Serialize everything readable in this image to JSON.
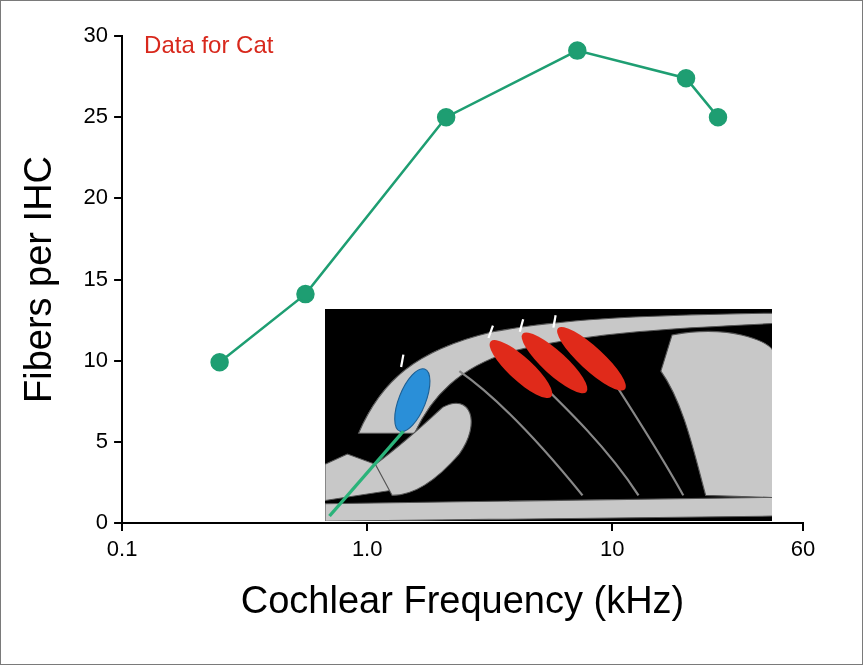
{
  "chart_data": {
    "type": "line",
    "title": "Data for Cat",
    "x_label": "Cochlear Frequency (kHz)",
    "y_label": "Fibers per IHC",
    "x": [
      0.25,
      0.56,
      2.1,
      7.2,
      20,
      27
    ],
    "values": [
      9.9,
      14.1,
      25.0,
      29.1,
      27.4,
      25.0
    ],
    "color": "#1e9e72",
    "marker": "circle",
    "log": "x",
    "xlim": [
      0.1,
      60
    ],
    "xticks": [
      0.1,
      {
        "value": 1,
        "label": "1.0"
      },
      10,
      60
    ],
    "ylim": [
      0,
      30
    ],
    "yticks": [
      0,
      5,
      10,
      15,
      20,
      25,
      30
    ],
    "grid": false
  }
}
